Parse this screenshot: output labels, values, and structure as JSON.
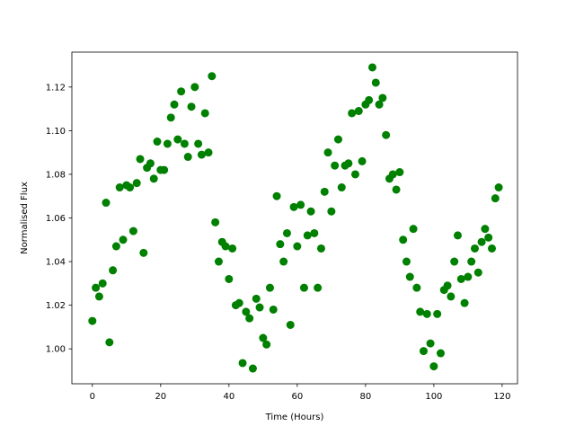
{
  "chart_data": {
    "type": "scatter",
    "title": "",
    "xlabel": "Time (Hours)",
    "ylabel": "Normalised Flux",
    "xlim": [
      -6,
      124.5
    ],
    "ylim": [
      0.984,
      1.136
    ],
    "xticks": [
      0,
      20,
      40,
      60,
      80,
      100,
      120
    ],
    "xtick_labels": [
      "0",
      "20",
      "40",
      "60",
      "80",
      "100",
      "120"
    ],
    "yticks": [
      1.0,
      1.02,
      1.04,
      1.06,
      1.08,
      1.1,
      1.12
    ],
    "ytick_labels": [
      "1.00",
      "1.02",
      "1.04",
      "1.06",
      "1.08",
      "1.10",
      "1.12"
    ],
    "grid": false,
    "marker_color": "#008000",
    "x": [
      0,
      1,
      2,
      3,
      4,
      5,
      6,
      7,
      8,
      9,
      10,
      11,
      12,
      13,
      14,
      15,
      16,
      17,
      18,
      19,
      20,
      21,
      22,
      23,
      24,
      25,
      26,
      27,
      28,
      29,
      30,
      31,
      32,
      33,
      34,
      35,
      36,
      37,
      38,
      39,
      40,
      41,
      42,
      43,
      44,
      45,
      46,
      47,
      48,
      49,
      50,
      51,
      52,
      53,
      54,
      55,
      56,
      57,
      58,
      59,
      60,
      61,
      62,
      63,
      64,
      65,
      66,
      67,
      68,
      69,
      70,
      71,
      72,
      73,
      74,
      75,
      76,
      77,
      78,
      79,
      80,
      81,
      82,
      83,
      84,
      85,
      86,
      87,
      88,
      89,
      90,
      91,
      92,
      93,
      94,
      95,
      96,
      97,
      98,
      99,
      100,
      101,
      102,
      103,
      104,
      105,
      106,
      107,
      108,
      109,
      110,
      111,
      112,
      113,
      114,
      115,
      116,
      117,
      118,
      119
    ],
    "y": [
      1.0128,
      1.028,
      1.024,
      1.03,
      1.067,
      1.003,
      1.036,
      1.047,
      1.074,
      1.05,
      1.075,
      1.074,
      1.054,
      1.076,
      1.087,
      1.044,
      1.083,
      1.085,
      1.078,
      1.095,
      1.082,
      1.082,
      1.094,
      1.106,
      1.112,
      1.096,
      1.118,
      1.094,
      1.088,
      1.111,
      1.12,
      1.094,
      1.089,
      1.108,
      1.09,
      1.125,
      1.058,
      1.04,
      1.049,
      1.047,
      1.032,
      1.046,
      1.02,
      1.021,
      0.9935,
      1.017,
      1.014,
      0.991,
      1.023,
      1.019,
      1.005,
      1.002,
      1.028,
      1.018,
      1.07,
      1.048,
      1.04,
      1.053,
      1.011,
      1.065,
      1.047,
      1.066,
      1.028,
      1.052,
      1.063,
      1.053,
      1.028,
      1.046,
      1.072,
      1.09,
      1.063,
      1.084,
      1.096,
      1.074,
      1.084,
      1.085,
      1.108,
      1.08,
      1.109,
      1.086,
      1.112,
      1.114,
      1.129,
      1.122,
      1.112,
      1.115,
      1.098,
      1.078,
      1.08,
      1.073,
      1.081,
      1.05,
      1.04,
      1.033,
      1.055,
      1.028,
      1.017,
      0.999,
      1.016,
      1.0025,
      0.992,
      1.016,
      0.998,
      1.027,
      1.029,
      1.024,
      1.04,
      1.052,
      1.032,
      1.021,
      1.033,
      1.04,
      1.046,
      1.035,
      1.049,
      1.055,
      1.051,
      1.046,
      1.069,
      1.074
    ]
  }
}
